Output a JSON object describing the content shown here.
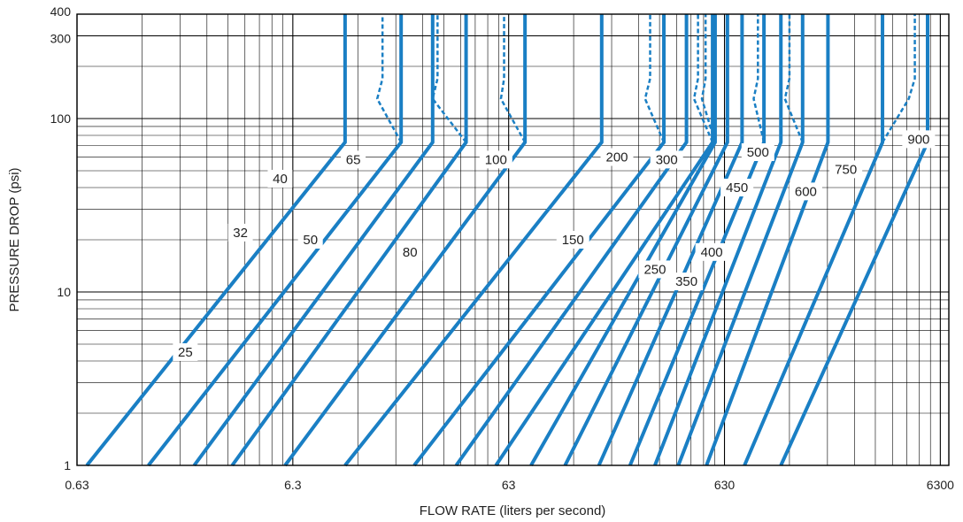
{
  "chart_data": {
    "type": "line",
    "title": "",
    "xlabel": "FLOW RATE (liters per second)",
    "ylabel": "PRESSURE DROP (psi)",
    "x_scale": "log",
    "y_scale": "log",
    "xlim": [
      0.63,
      6900
    ],
    "ylim": [
      1,
      400
    ],
    "x_ticks": [
      {
        "value": 0.63,
        "label": "0.63"
      },
      {
        "value": 6.3,
        "label": "6.3"
      },
      {
        "value": 63,
        "label": "63"
      },
      {
        "value": 630,
        "label": "630"
      },
      {
        "value": 6300,
        "label": "6300"
      }
    ],
    "y_ticks": [
      {
        "value": 1,
        "label": "1"
      },
      {
        "value": 10,
        "label": "10"
      },
      {
        "value": 100,
        "label": "100"
      },
      {
        "value": 300,
        "label": "300"
      },
      {
        "value": 400,
        "label": "400"
      }
    ],
    "grid": true,
    "line_color": "#1a7fc4",
    "series": [
      {
        "name": "25",
        "start_x": 0.7,
        "knee_x": 11.0,
        "knee_y": 73,
        "label_x": 2.0,
        "label_y": 4.5,
        "dashed_x": null
      },
      {
        "name": "32",
        "start_x": 1.35,
        "knee_x": 20.0,
        "knee_y": 73,
        "label_x": 3.6,
        "label_y": 22,
        "dashed_x": [
          15.5,
          16.4
        ]
      },
      {
        "name": "40",
        "start_x": 2.2,
        "knee_x": 28.0,
        "knee_y": 73,
        "label_x": 5.5,
        "label_y": 45,
        "dashed_x": null
      },
      {
        "name": "50",
        "start_x": 3.3,
        "knee_x": 40.0,
        "knee_y": 73,
        "label_x": 7.6,
        "label_y": 20,
        "dashed_x": [
          28.0,
          29.5
        ]
      },
      {
        "name": "65",
        "start_x": 5.8,
        "knee_x": 75.0,
        "knee_y": 73,
        "label_x": 12.0,
        "label_y": 58,
        "dashed_x": [
          58.0,
          60.0
        ]
      },
      {
        "name": "80",
        "start_x": 11.0,
        "knee_x": 170.0,
        "knee_y": 73,
        "label_x": 22.0,
        "label_y": 17,
        "dashed_x": null
      },
      {
        "name": "100",
        "start_x": 23.0,
        "knee_x": 330.0,
        "knee_y": 73,
        "label_x": 55.0,
        "label_y": 58,
        "dashed_x": [
          270.0,
          285.0
        ]
      },
      {
        "name": "150",
        "start_x": 36.0,
        "knee_x": 420.0,
        "knee_y": 73,
        "label_x": 125.0,
        "label_y": 20,
        "dashed_x": null
      },
      {
        "name": "200",
        "start_x": 55.0,
        "knee_x": 555.0,
        "knee_y": 73,
        "label_x": 200.0,
        "label_y": 60,
        "dashed_x": [
          455.0,
          475.0
        ]
      },
      {
        "name": "250",
        "start_x": 80.0,
        "knee_x": 570.0,
        "knee_y": 73,
        "label_x": 300.0,
        "label_y": 13.5,
        "dashed_x": [
          495.0,
          515.0
        ]
      },
      {
        "name": "300",
        "start_x": 115.0,
        "knee_x": 650.0,
        "knee_y": 73,
        "label_x": 340.0,
        "label_y": 58,
        "dashed_x": null
      },
      {
        "name": "350",
        "start_x": 165.0,
        "knee_x": 760.0,
        "knee_y": 73,
        "label_x": 420.0,
        "label_y": 11.5,
        "dashed_x": null
      },
      {
        "name": "400",
        "start_x": 230.0,
        "knee_x": 960.0,
        "knee_y": 73,
        "label_x": 550.0,
        "label_y": 17,
        "dashed_x": [
          860.0,
          900.0
        ]
      },
      {
        "name": "450",
        "start_x": 300.0,
        "knee_x": 1150.0,
        "knee_y": 73,
        "label_x": 720.0,
        "label_y": 40,
        "dashed_x": null
      },
      {
        "name": "500",
        "start_x": 385.0,
        "knee_x": 1450.0,
        "knee_y": 73,
        "label_x": 900.0,
        "label_y": 64,
        "dashed_x": [
          1200.0,
          1260.0
        ]
      },
      {
        "name": "600",
        "start_x": 520.0,
        "knee_x": 1900.0,
        "knee_y": 73,
        "label_x": 1500.0,
        "label_y": 38,
        "dashed_x": null
      },
      {
        "name": "750",
        "start_x": 780.0,
        "knee_x": 3400.0,
        "knee_y": 73,
        "label_x": 2300.0,
        "label_y": 51,
        "dashed_x": [
          4500.0,
          4800.0
        ]
      },
      {
        "name": "900",
        "start_x": 1150.0,
        "knee_x": 5500.0,
        "knee_y": 73,
        "label_x": 5000.0,
        "label_y": 76,
        "dashed_x": null
      }
    ]
  }
}
